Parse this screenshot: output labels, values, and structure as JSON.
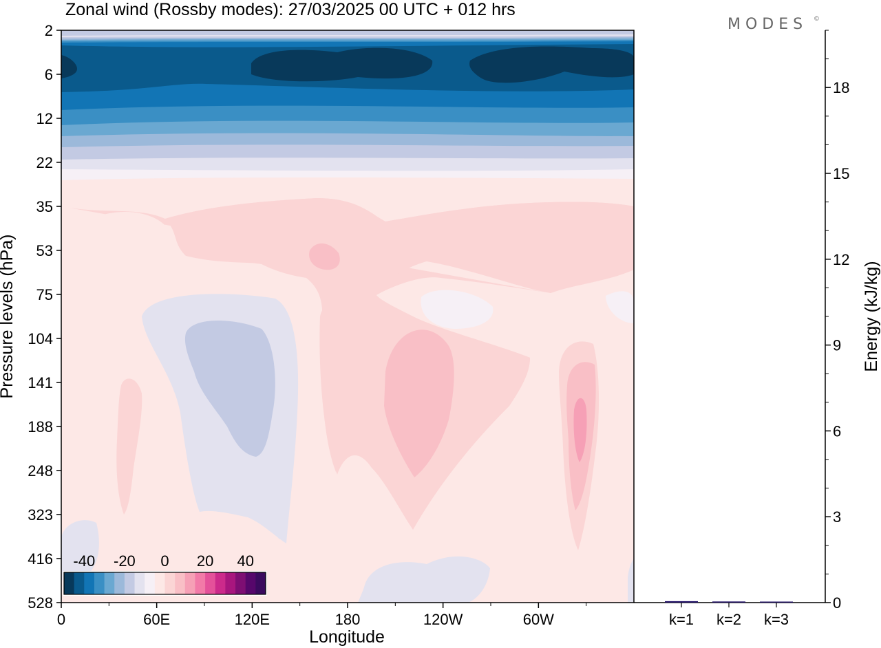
{
  "title": "Zonal wind (Rossby modes):  27/03/2025  00 UTC  + 012 hrs",
  "logo": "MODES",
  "logo_mark": "©",
  "chart_data": [
    {
      "type": "heatmap",
      "x_ticks": [
        "0",
        "60E",
        "120E",
        "180",
        "120W",
        "60W"
      ],
      "x_tick_values": [
        0,
        60,
        120,
        180,
        240,
        300
      ],
      "xlim": [
        0,
        360
      ],
      "xlabel": "Longitude",
      "y_ticks": [
        "2",
        "6",
        "12",
        "22",
        "35",
        "53",
        "75",
        "104",
        "141",
        "188",
        "248",
        "323",
        "416",
        "528"
      ],
      "ylabel": "Pressure levels (hPa)",
      "colorbar": {
        "ticks": [
          "-40",
          "-20",
          "0",
          "20",
          "40"
        ],
        "range": [
          -50,
          50
        ],
        "step": 5,
        "colors": [
          "#08395a",
          "#0a5a8c",
          "#1275b5",
          "#3a8fc4",
          "#6aa8d1",
          "#9cb9da",
          "#c3cae3",
          "#e3e2ef",
          "#f6f0f6",
          "#fde8e6",
          "#fbd5d5",
          "#f9bfc6",
          "#f6a0b6",
          "#f27aa8",
          "#e4519a",
          "#cc2a8b",
          "#a8167e",
          "#7e0e73",
          "#56076b",
          "#3a0a5e"
        ]
      },
      "zonal_wind_levels": [
        {
          "level": "2",
          "u": -8
        },
        {
          "level": "6",
          "u": -42
        },
        {
          "level": "12",
          "u": -25
        },
        {
          "level": "22",
          "u": -2
        },
        {
          "level": "35",
          "u": 4
        },
        {
          "level": "53",
          "u": 7
        },
        {
          "level": "75",
          "u": 3
        },
        {
          "level": "104",
          "u": 3
        },
        {
          "level": "141",
          "u": 5
        },
        {
          "level": "188",
          "u": 7
        },
        {
          "level": "248",
          "u": 4
        },
        {
          "level": "323",
          "u": 2
        },
        {
          "level": "416",
          "u": 0
        },
        {
          "level": "528",
          "u": 0
        }
      ],
      "features": [
        {
          "type": "min",
          "lon": 120,
          "level": "141",
          "u": -8
        },
        {
          "type": "max",
          "lon": 225,
          "level": "188",
          "u": 12
        },
        {
          "type": "max",
          "lon": 327,
          "level": "188",
          "u": 17
        },
        {
          "type": "max",
          "lon": 165,
          "level": "53",
          "u": 12
        }
      ]
    },
    {
      "type": "bar",
      "categories": [
        "k=1",
        "k=2",
        "k=3"
      ],
      "values": [
        0.05,
        0.04,
        0.0
      ],
      "ylabel": "Energy (kJ/kg)",
      "ylim": [
        0,
        20
      ],
      "y_ticks": [
        "0",
        "3",
        "6",
        "9",
        "12",
        "15",
        "18"
      ],
      "y_tick_values": [
        0,
        3,
        6,
        9,
        12,
        15,
        18
      ]
    }
  ]
}
